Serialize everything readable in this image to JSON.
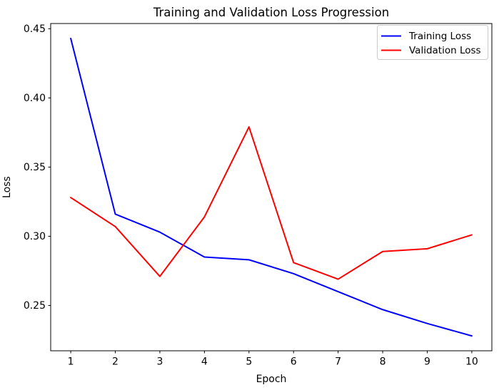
{
  "chart_data": {
    "type": "line",
    "title": "Training and Validation Loss Progression",
    "xlabel": "Epoch",
    "ylabel": "Loss",
    "x": [
      1,
      2,
      3,
      4,
      5,
      6,
      7,
      8,
      9,
      10
    ],
    "xtick_labels": [
      "1",
      "2",
      "3",
      "4",
      "5",
      "6",
      "7",
      "8",
      "9",
      "10"
    ],
    "yticks": [
      0.25,
      0.3,
      0.35,
      0.4,
      0.45
    ],
    "ytick_labels": [
      "0.25",
      "0.30",
      "0.35",
      "0.40",
      "0.45"
    ],
    "xlim": [
      0.55,
      10.45
    ],
    "ylim": [
      0.21725,
      0.45375
    ],
    "grid": false,
    "legend_position": "upper right",
    "series": [
      {
        "name": "Training Loss",
        "color": "#0000ff",
        "values": [
          0.443,
          0.316,
          0.303,
          0.285,
          0.283,
          0.273,
          0.26,
          0.247,
          0.237,
          0.228
        ]
      },
      {
        "name": "Validation Loss",
        "color": "#ff0000",
        "values": [
          0.328,
          0.307,
          0.271,
          0.314,
          0.379,
          0.281,
          0.269,
          0.289,
          0.291,
          0.301
        ]
      }
    ],
    "colors": {
      "axis": "#000000",
      "text": "#000000",
      "legend_border": "#cccccc",
      "background": "#ffffff"
    }
  }
}
